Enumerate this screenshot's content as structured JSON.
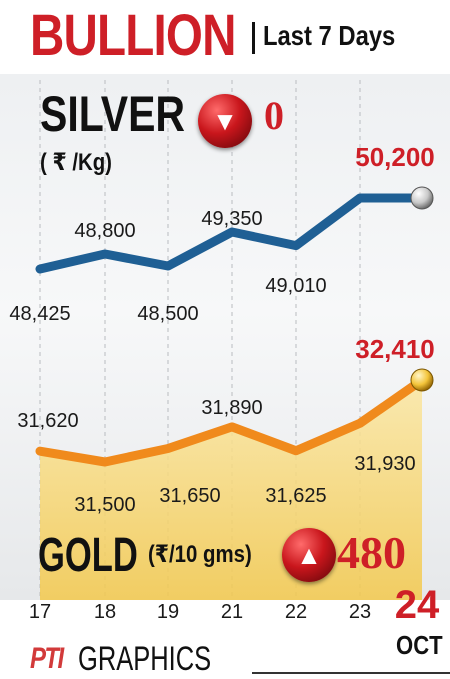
{
  "header": {
    "title": "BULLION",
    "subtitle": "Last 7 Days"
  },
  "silver": {
    "label": "SILVER",
    "unit": "( ₹ /Kg)",
    "change": "0",
    "change_icon": "arrow-down-icon"
  },
  "gold": {
    "label": "GOLD",
    "unit": "(₹/10 gms)",
    "change": "480",
    "change_icon": "arrow-up-icon"
  },
  "month": "OCT",
  "footer": {
    "brand": "PTI",
    "label": "GRAPHICS"
  },
  "colors": {
    "accent_red": "#ce1f27",
    "silver_line": "#1f5f94",
    "gold_line": "#f08a1c"
  },
  "chart_data": {
    "type": "line",
    "categories": [
      "17",
      "18",
      "19",
      "21",
      "22",
      "23",
      "24"
    ],
    "series": [
      {
        "name": "SILVER",
        "values": [
          48425,
          48800,
          48500,
          49350,
          49010,
          50200,
          50200
        ],
        "labels": [
          "48,425",
          "48,800",
          "48,500",
          "49,350",
          "49,010",
          "",
          "50,200"
        ]
      },
      {
        "name": "GOLD",
        "values": [
          31620,
          31500,
          31650,
          31890,
          31625,
          31930,
          32410
        ],
        "labels": [
          "31,620",
          "31,500",
          "31,650",
          "31,890",
          "31,625",
          "31,930",
          "32,410"
        ]
      }
    ],
    "grid": true
  }
}
